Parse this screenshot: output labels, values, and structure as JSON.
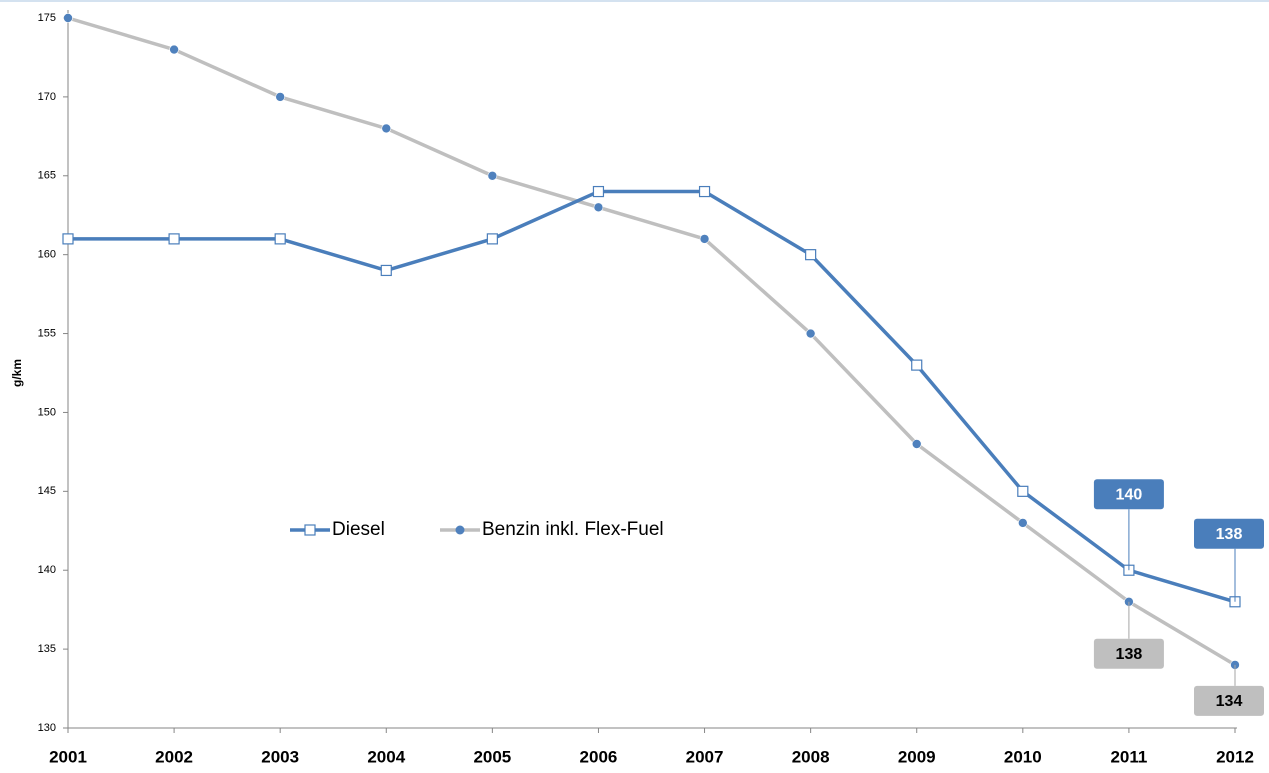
{
  "chart_data": {
    "type": "line",
    "y_label": "g/km",
    "categories": [
      "2001",
      "2002",
      "2003",
      "2004",
      "2005",
      "2006",
      "2007",
      "2008",
      "2009",
      "2010",
      "2011",
      "2012"
    ],
    "series": [
      {
        "name": "Diesel",
        "color": "#4a7ebb",
        "marker": "square",
        "values": [
          161,
          161,
          161,
          159,
          161,
          164,
          164,
          160,
          153,
          145,
          140,
          138
        ]
      },
      {
        "name": "Benzin inkl. Flex-Fuel",
        "color": "#bfbfbf",
        "marker_color": "#4f81bd",
        "marker": "circle",
        "values": [
          175,
          173,
          170,
          168,
          165,
          163,
          161,
          155,
          148,
          143,
          138,
          134
        ]
      }
    ],
    "label_indices": [
      10,
      11
    ],
    "ylim": [
      130,
      175
    ],
    "yticks": [
      130,
      135,
      140,
      145,
      150,
      155,
      160,
      165,
      170,
      175
    ],
    "grid": false
  }
}
